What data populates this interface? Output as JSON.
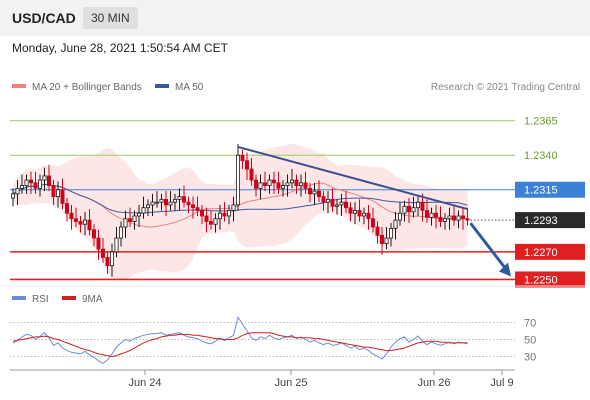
{
  "header": {
    "symbol": "USD/CAD",
    "timeframe": "30 MIN",
    "timestamp": "Monday, June 28, 2021 1:50:54 AM CET"
  },
  "colors": {
    "candle_up": "#1a1a1a",
    "candle_down": "#d0021b",
    "bollinger_fill": "#fde2e2",
    "ma20": "#f08080",
    "ma50": "#3a5a9c",
    "trendline": "#3a4f8f",
    "forecast_arrow": "#2e5a9c",
    "resistance_green": "#9ccc65",
    "pivot_blue": "#3b82d6",
    "support_red": "#e02020",
    "current_price": "#2b2b2b",
    "rsi": "#6a8dd8",
    "rsi_ma": "#d02020"
  },
  "chart_data": [
    {
      "type": "candlestick",
      "legend": [
        {
          "label": "MA 20 + Bollinger Bands",
          "color": "#f08080"
        },
        {
          "label": "MA 50",
          "color": "#3a5a9c"
        }
      ],
      "credit": "Research © 2021 Trading Central",
      "ylim": [
        1.2246,
        1.238
      ],
      "levels": [
        {
          "value": 1.2365,
          "label": "1.2365",
          "kind": "resistance"
        },
        {
          "value": 1.234,
          "label": "1.2340",
          "kind": "resistance"
        },
        {
          "value": 1.2315,
          "label": "1.2315",
          "kind": "pivot"
        },
        {
          "value": 1.2293,
          "label": "1.2293",
          "kind": "current"
        },
        {
          "value": 1.227,
          "label": "1.2270",
          "kind": "support"
        },
        {
          "value": 1.225,
          "label": "1.2250",
          "kind": "support"
        }
      ],
      "x_ticks": [
        "Jun 24",
        "Jun 25",
        "Jun 26",
        "Jul 9"
      ],
      "close": [
        1.2312,
        1.2316,
        1.2318,
        1.2322,
        1.232,
        1.2316,
        1.2322,
        1.2325,
        1.2318,
        1.231,
        1.2315,
        1.2305,
        1.2298,
        1.2294,
        1.2292,
        1.229,
        1.2293,
        1.2286,
        1.228,
        1.2272,
        1.2266,
        1.226,
        1.227,
        1.228,
        1.2288,
        1.2294,
        1.2292,
        1.2296,
        1.2298,
        1.2302,
        1.2304,
        1.2306,
        1.2306,
        1.2308,
        1.2304,
        1.2306,
        1.2308,
        1.231,
        1.2306,
        1.2304,
        1.2302,
        1.23,
        1.2296,
        1.2292,
        1.229,
        1.2294,
        1.2298,
        1.2296,
        1.23,
        1.2304,
        1.234,
        1.2336,
        1.233,
        1.2322,
        1.2316,
        1.232,
        1.2318,
        1.2322,
        1.232,
        1.2316,
        1.2318,
        1.232,
        1.2322,
        1.2318,
        1.232,
        1.2316,
        1.2312,
        1.2314,
        1.231,
        1.2306,
        1.2308,
        1.2303,
        1.2304,
        1.2306,
        1.2302,
        1.2298,
        1.23,
        1.2296,
        1.2298,
        1.2294,
        1.2288,
        1.2282,
        1.2276,
        1.228,
        1.2287,
        1.2293,
        1.2298,
        1.2303,
        1.2299,
        1.2302,
        1.2306,
        1.23,
        1.2295,
        1.2298,
        1.2295,
        1.2292,
        1.2294,
        1.2296,
        1.2293,
        1.2296,
        1.2294,
        1.2293
      ],
      "rsi": {
        "legend": [
          {
            "label": "RSI",
            "color": "#6a8dd8"
          },
          {
            "label": "9MA",
            "color": "#d02020"
          }
        ],
        "levels": [
          70,
          50,
          30
        ],
        "ylim": [
          20,
          80
        ],
        "values": [
          46,
          49,
          53,
          56,
          55,
          50,
          54,
          58,
          52,
          43,
          46,
          40,
          37,
          35,
          34,
          33,
          36,
          32,
          29,
          25,
          22,
          26,
          33,
          41,
          46,
          50,
          48,
          51,
          53,
          55,
          56,
          57,
          57,
          58,
          55,
          56,
          57,
          58,
          55,
          53,
          52,
          51,
          48,
          46,
          45,
          48,
          51,
          49,
          52,
          55,
          76,
          68,
          60,
          52,
          49,
          53,
          51,
          55,
          52,
          50,
          52,
          53,
          55,
          51,
          53,
          50,
          47,
          49,
          46,
          44,
          46,
          43,
          44,
          46,
          43,
          40,
          42,
          38,
          40,
          37,
          33,
          30,
          27,
          33,
          41,
          47,
          51,
          53,
          47,
          50,
          54,
          48,
          44,
          47,
          45,
          43,
          45,
          47,
          45,
          47,
          46,
          45
        ],
        "ma9": [
          48,
          49,
          50,
          51,
          52,
          53,
          53,
          54,
          53,
          51,
          50,
          48,
          46,
          44,
          42,
          40,
          38,
          37,
          35,
          33,
          32,
          31,
          30,
          31,
          33,
          35,
          37,
          40,
          43,
          46,
          48,
          50,
          51,
          53,
          54,
          55,
          55,
          56,
          56,
          56,
          55,
          55,
          54,
          53,
          52,
          51,
          51,
          50,
          50,
          50,
          52,
          55,
          57,
          58,
          58,
          58,
          58,
          58,
          57,
          55,
          54,
          53,
          53,
          52,
          52,
          52,
          52,
          51,
          51,
          50,
          49,
          48,
          47,
          46,
          45,
          44,
          43,
          42,
          41,
          41,
          40,
          39,
          38,
          37,
          37,
          38,
          39,
          40,
          42,
          44,
          46,
          47,
          48,
          48,
          48,
          47,
          47,
          46,
          46,
          46,
          46,
          46
        ]
      }
    }
  ]
}
